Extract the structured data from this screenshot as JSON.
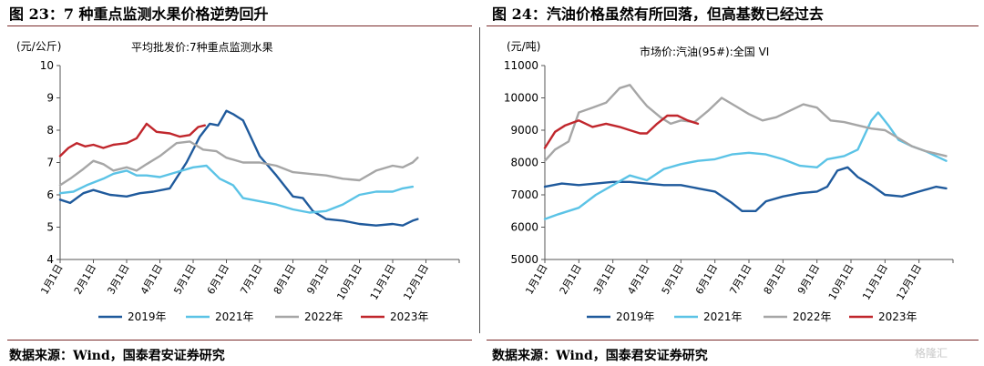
{
  "page": {
    "watermark": "格隆汇"
  },
  "panels": [
    {
      "title": "图 23：7 种重点监测水果价格逆势回升",
      "source": "数据来源：Wind，国泰君安证券研究"
    },
    {
      "title": "图 24：汽油价格虽然有所回落，但高基数已经过去",
      "source": "数据来源：Wind，国泰君安证券研究"
    }
  ],
  "chart_data": [
    {
      "type": "line",
      "title": "平均批发价:7种重点监测水果",
      "ylabel": "(元/公斤)",
      "ylim": [
        4,
        10
      ],
      "yticks": [
        4,
        5,
        6,
        7,
        8,
        9,
        10
      ],
      "xlim": [
        1,
        13
      ],
      "categories": [
        "1月1日",
        "2月1日",
        "3月1日",
        "4月1日",
        "5月1日",
        "6月1日",
        "7月1日",
        "8月1日",
        "9月1日",
        "10月1日",
        "11月1日",
        "12月1日"
      ],
      "legend_position": "bottom",
      "grid": false,
      "series": [
        {
          "name": "2019年",
          "color": "#1f5a9c",
          "points": [
            [
              1,
              5.85
            ],
            [
              1.3,
              5.75
            ],
            [
              1.7,
              6.05
            ],
            [
              2,
              6.15
            ],
            [
              2.5,
              6.0
            ],
            [
              3,
              5.95
            ],
            [
              3.4,
              6.05
            ],
            [
              3.8,
              6.1
            ],
            [
              4.3,
              6.2
            ],
            [
              4.8,
              7.0
            ],
            [
              5.2,
              7.8
            ],
            [
              5.5,
              8.2
            ],
            [
              5.75,
              8.15
            ],
            [
              6,
              8.6
            ],
            [
              6.2,
              8.5
            ],
            [
              6.5,
              8.3
            ],
            [
              7,
              7.2
            ],
            [
              7.5,
              6.6
            ],
            [
              8,
              5.95
            ],
            [
              8.3,
              5.9
            ],
            [
              8.6,
              5.5
            ],
            [
              9,
              5.25
            ],
            [
              9.5,
              5.2
            ],
            [
              10,
              5.1
            ],
            [
              10.5,
              5.05
            ],
            [
              11,
              5.1
            ],
            [
              11.3,
              5.05
            ],
            [
              11.6,
              5.2
            ],
            [
              11.75,
              5.25
            ]
          ]
        },
        {
          "name": "2021年",
          "color": "#5bc3e6",
          "points": [
            [
              1,
              6.05
            ],
            [
              1.4,
              6.1
            ],
            [
              1.8,
              6.3
            ],
            [
              2.3,
              6.5
            ],
            [
              2.6,
              6.65
            ],
            [
              3,
              6.75
            ],
            [
              3.3,
              6.6
            ],
            [
              3.6,
              6.6
            ],
            [
              4,
              6.55
            ],
            [
              4.5,
              6.7
            ],
            [
              5,
              6.85
            ],
            [
              5.4,
              6.9
            ],
            [
              5.8,
              6.5
            ],
            [
              6.2,
              6.3
            ],
            [
              6.5,
              5.9
            ],
            [
              7,
              5.8
            ],
            [
              7.5,
              5.7
            ],
            [
              8,
              5.55
            ],
            [
              8.5,
              5.45
            ],
            [
              9,
              5.5
            ],
            [
              9.5,
              5.7
            ],
            [
              10,
              6.0
            ],
            [
              10.5,
              6.1
            ],
            [
              11,
              6.1
            ],
            [
              11.3,
              6.2
            ],
            [
              11.6,
              6.25
            ]
          ]
        },
        {
          "name": "2022年",
          "color": "#a6a6a6",
          "points": [
            [
              1,
              6.3
            ],
            [
              1.3,
              6.5
            ],
            [
              1.7,
              6.8
            ],
            [
              2,
              7.05
            ],
            [
              2.3,
              6.95
            ],
            [
              2.6,
              6.75
            ],
            [
              3,
              6.85
            ],
            [
              3.3,
              6.75
            ],
            [
              3.6,
              6.95
            ],
            [
              4,
              7.2
            ],
            [
              4.5,
              7.6
            ],
            [
              4.9,
              7.65
            ],
            [
              5.3,
              7.4
            ],
            [
              5.7,
              7.35
            ],
            [
              6,
              7.15
            ],
            [
              6.5,
              7.0
            ],
            [
              7,
              7.0
            ],
            [
              7.5,
              6.9
            ],
            [
              8,
              6.7
            ],
            [
              8.5,
              6.65
            ],
            [
              9,
              6.6
            ],
            [
              9.5,
              6.5
            ],
            [
              10,
              6.45
            ],
            [
              10.5,
              6.75
            ],
            [
              11,
              6.9
            ],
            [
              11.3,
              6.85
            ],
            [
              11.6,
              7.0
            ],
            [
              11.75,
              7.15
            ]
          ]
        },
        {
          "name": "2023年",
          "color": "#c0262c",
          "points": [
            [
              1,
              7.2
            ],
            [
              1.25,
              7.45
            ],
            [
              1.5,
              7.6
            ],
            [
              1.75,
              7.5
            ],
            [
              2,
              7.55
            ],
            [
              2.3,
              7.45
            ],
            [
              2.6,
              7.55
            ],
            [
              3,
              7.6
            ],
            [
              3.3,
              7.75
            ],
            [
              3.6,
              8.2
            ],
            [
              3.9,
              7.95
            ],
            [
              4.3,
              7.9
            ],
            [
              4.6,
              7.8
            ],
            [
              4.9,
              7.85
            ],
            [
              5.15,
              8.1
            ],
            [
              5.35,
              8.15
            ]
          ]
        }
      ]
    },
    {
      "type": "line",
      "title": "市场价:汽油(95#):全国 VI",
      "ylabel": "(元/吨)",
      "ylim": [
        5000,
        11000
      ],
      "yticks": [
        5000,
        6000,
        7000,
        8000,
        9000,
        10000,
        11000
      ],
      "xlim": [
        1,
        13
      ],
      "categories": [
        "1月1日",
        "2月1日",
        "3月1日",
        "4月1日",
        "5月1日",
        "6月1日",
        "7月1日",
        "8月1日",
        "9月1日",
        "10月1日",
        "11月1日",
        "12月1日"
      ],
      "legend_position": "bottom",
      "grid": false,
      "series": [
        {
          "name": "2019年",
          "color": "#1f5a9c",
          "points": [
            [
              1,
              7250
            ],
            [
              1.5,
              7350
            ],
            [
              2,
              7300
            ],
            [
              3,
              7400
            ],
            [
              3.5,
              7400
            ],
            [
              4,
              7350
            ],
            [
              4.5,
              7300
            ],
            [
              5,
              7300
            ],
            [
              5.5,
              7200
            ],
            [
              6,
              7100
            ],
            [
              6.5,
              6750
            ],
            [
              6.8,
              6500
            ],
            [
              7.2,
              6500
            ],
            [
              7.5,
              6800
            ],
            [
              8,
              6950
            ],
            [
              8.5,
              7050
            ],
            [
              9,
              7100
            ],
            [
              9.3,
              7250
            ],
            [
              9.6,
              7750
            ],
            [
              9.9,
              7850
            ],
            [
              10.2,
              7550
            ],
            [
              10.6,
              7300
            ],
            [
              11,
              7000
            ],
            [
              11.5,
              6950
            ],
            [
              12,
              7100
            ],
            [
              12.5,
              7250
            ],
            [
              12.8,
              7200
            ]
          ]
        },
        {
          "name": "2021年",
          "color": "#5bc3e6",
          "points": [
            [
              1,
              6250
            ],
            [
              1.4,
              6400
            ],
            [
              2,
              6600
            ],
            [
              2.5,
              7000
            ],
            [
              3,
              7300
            ],
            [
              3.5,
              7600
            ],
            [
              4,
              7450
            ],
            [
              4.5,
              7800
            ],
            [
              5,
              7950
            ],
            [
              5.5,
              8050
            ],
            [
              6,
              8100
            ],
            [
              6.5,
              8250
            ],
            [
              7,
              8300
            ],
            [
              7.5,
              8250
            ],
            [
              8,
              8100
            ],
            [
              8.5,
              7900
            ],
            [
              9,
              7850
            ],
            [
              9.3,
              8100
            ],
            [
              9.8,
              8200
            ],
            [
              10.2,
              8400
            ],
            [
              10.6,
              9300
            ],
            [
              10.8,
              9550
            ],
            [
              11.1,
              9150
            ],
            [
              11.4,
              8700
            ],
            [
              11.8,
              8500
            ],
            [
              12.2,
              8350
            ],
            [
              12.5,
              8200
            ],
            [
              12.8,
              8050
            ]
          ]
        },
        {
          "name": "2022年",
          "color": "#a6a6a6",
          "points": [
            [
              1,
              8050
            ],
            [
              1.3,
              8400
            ],
            [
              1.7,
              8650
            ],
            [
              2,
              9550
            ],
            [
              2.4,
              9700
            ],
            [
              2.8,
              9850
            ],
            [
              3.2,
              10300
            ],
            [
              3.5,
              10400
            ],
            [
              3.8,
              10000
            ],
            [
              4,
              9750
            ],
            [
              4.4,
              9400
            ],
            [
              4.7,
              9200
            ],
            [
              5,
              9300
            ],
            [
              5.4,
              9250
            ],
            [
              5.8,
              9600
            ],
            [
              6.2,
              10000
            ],
            [
              6.6,
              9750
            ],
            [
              7,
              9500
            ],
            [
              7.4,
              9300
            ],
            [
              7.8,
              9400
            ],
            [
              8.2,
              9600
            ],
            [
              8.6,
              9800
            ],
            [
              9,
              9700
            ],
            [
              9.4,
              9300
            ],
            [
              9.8,
              9250
            ],
            [
              10.2,
              9150
            ],
            [
              10.6,
              9050
            ],
            [
              11,
              9000
            ],
            [
              11.4,
              8750
            ],
            [
              11.8,
              8500
            ],
            [
              12.2,
              8350
            ],
            [
              12.8,
              8200
            ]
          ]
        },
        {
          "name": "2023年",
          "color": "#c0262c",
          "points": [
            [
              1,
              8450
            ],
            [
              1.3,
              8950
            ],
            [
              1.6,
              9150
            ],
            [
              2,
              9300
            ],
            [
              2.4,
              9100
            ],
            [
              2.8,
              9200
            ],
            [
              3.2,
              9100
            ],
            [
              3.5,
              9000
            ],
            [
              3.8,
              8900
            ],
            [
              4,
              8900
            ],
            [
              4.3,
              9200
            ],
            [
              4.6,
              9450
            ],
            [
              4.9,
              9450
            ],
            [
              5.2,
              9300
            ],
            [
              5.5,
              9200
            ]
          ]
        }
      ]
    }
  ]
}
